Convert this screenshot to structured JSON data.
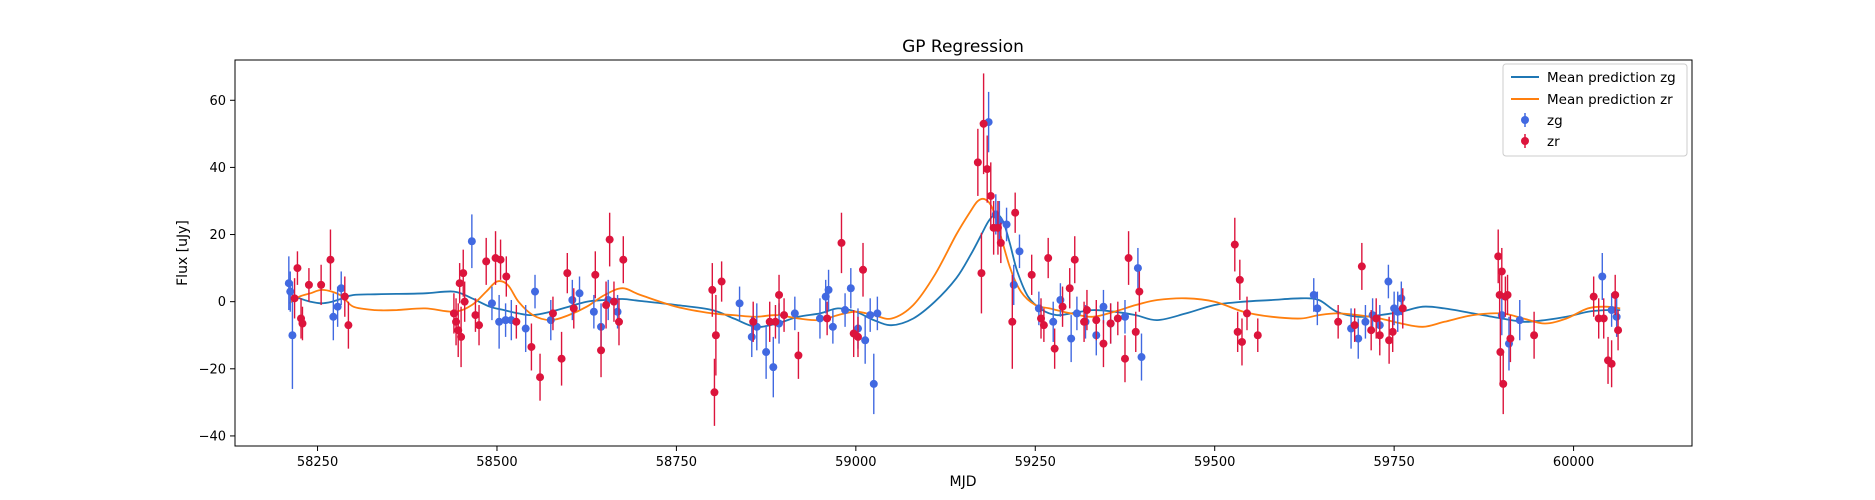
{
  "chart_data": {
    "type": "scatter",
    "title": "GP Regression",
    "xlabel": "MJD",
    "ylabel": "Flux [uJy]",
    "xlim": [
      58135,
      60165
    ],
    "ylim": [
      -43,
      72
    ],
    "xticks": [
      58250,
      58500,
      58750,
      59000,
      59250,
      59500,
      59750,
      60000
    ],
    "yticks": [
      -40,
      -20,
      0,
      20,
      40,
      60
    ],
    "legend_position": "top-right",
    "grid": false,
    "legend": [
      {
        "label": "Mean prediction zg",
        "kind": "line",
        "color": "#1f77b4"
      },
      {
        "label": "Mean prediction zr",
        "kind": "line",
        "color": "#ff7f0e"
      },
      {
        "label": "zg",
        "kind": "errorbar",
        "color": "#4169e1"
      },
      {
        "label": "zr",
        "kind": "errorbar",
        "color": "#dc143c"
      }
    ],
    "lines": [
      {
        "name": "Mean prediction zg",
        "color": "#1f77b4",
        "x": [
          58210,
          58225,
          58240,
          58255,
          58270,
          58285,
          58300,
          58330,
          58360,
          58400,
          58440,
          58465,
          58490,
          58510,
          58530,
          58550,
          58575,
          58600,
          58625,
          58650,
          58675,
          58700,
          58750,
          58800,
          58830,
          58860,
          58890,
          58920,
          58950,
          58975,
          59000,
          59025,
          59050,
          59080,
          59110,
          59140,
          59160,
          59175,
          59185,
          59195,
          59205,
          59215,
          59225,
          59240,
          59260,
          59280,
          59300,
          59330,
          59360,
          59390,
          59420,
          59460,
          59500,
          59540,
          59580,
          59620,
          59645,
          59670,
          59700,
          59730,
          59760,
          59790,
          59820,
          59860,
          59900,
          59930,
          59960,
          59990,
          60020,
          60045,
          60065
        ],
        "y": [
          2.5,
          1.0,
          0.0,
          -0.5,
          0.0,
          1.0,
          2.0,
          2.2,
          2.3,
          2.5,
          3.0,
          1.0,
          -1.5,
          -2.5,
          -3.5,
          -4.0,
          -3.0,
          -1.5,
          0.0,
          0.5,
          0.8,
          0.2,
          -1.0,
          -2.5,
          -5.0,
          -7.5,
          -6.5,
          -4.5,
          -3.5,
          -2.0,
          -3.0,
          -5.5,
          -7.0,
          -5.0,
          0.0,
          7.0,
          14.0,
          20.0,
          24.0,
          26.0,
          24.0,
          17.0,
          9.0,
          1.5,
          -2.5,
          -4.0,
          -3.5,
          -2.5,
          -3.0,
          -4.0,
          -5.5,
          -3.5,
          -1.0,
          0.0,
          0.5,
          1.0,
          0.5,
          -3.0,
          -4.5,
          -4.0,
          -3.0,
          -1.5,
          -2.0,
          -3.5,
          -5.0,
          -6.0,
          -5.5,
          -4.5,
          -3.0,
          -2.5,
          -2.5
        ]
      },
      {
        "name": "Mean prediction zr",
        "color": "#ff7f0e",
        "x": [
          58210,
          58225,
          58240,
          58255,
          58270,
          58285,
          58300,
          58330,
          58360,
          58400,
          58440,
          58465,
          58485,
          58500,
          58515,
          58530,
          58550,
          58575,
          58600,
          58625,
          58650,
          58675,
          58700,
          58750,
          58800,
          58830,
          58860,
          58890,
          58920,
          58950,
          58975,
          59000,
          59025,
          59050,
          59080,
          59110,
          59140,
          59160,
          59170,
          59180,
          59190,
          59200,
          59215,
          59230,
          59250,
          59270,
          59300,
          59330,
          59360,
          59390,
          59420,
          59460,
          59500,
          59540,
          59580,
          59620,
          59645,
          59670,
          59700,
          59730,
          59760,
          59790,
          59820,
          59860,
          59900,
          59930,
          59960,
          59990,
          60020,
          60045,
          60065
        ],
        "y": [
          -0.5,
          1.5,
          2.5,
          3.5,
          3.0,
          1.5,
          -1.5,
          -2.5,
          -2.5,
          -2.0,
          -3.0,
          -1.0,
          3.0,
          6.0,
          5.0,
          0.0,
          -4.0,
          -5.5,
          -4.0,
          -1.5,
          2.0,
          4.0,
          2.0,
          -1.5,
          -3.5,
          -4.0,
          -4.5,
          -4.0,
          -5.0,
          -5.5,
          -4.0,
          -3.0,
          -4.0,
          -5.0,
          -1.0,
          8.0,
          20.0,
          27.0,
          30.0,
          30.5,
          28.0,
          21.0,
          10.0,
          3.0,
          -1.0,
          -2.0,
          -3.5,
          -4.5,
          -3.0,
          -1.0,
          0.5,
          1.0,
          0.0,
          -3.0,
          -4.5,
          -5.0,
          -4.0,
          -3.5,
          -4.0,
          -5.0,
          -6.5,
          -7.5,
          -6.0,
          -4.0,
          -3.5,
          -5.0,
          -6.5,
          -5.0,
          -2.0,
          -1.5,
          -2.0
        ]
      }
    ],
    "series": [
      {
        "name": "zg",
        "color": "#4169e1",
        "points": [
          [
            58210,
            5.5,
            8
          ],
          [
            58212,
            3.0,
            6
          ],
          [
            58215,
            -10.0,
            16
          ],
          [
            58272,
            -4.5,
            7
          ],
          [
            58278,
            -1.5,
            6
          ],
          [
            58283,
            4.0,
            5
          ],
          [
            58465,
            18.0,
            8
          ],
          [
            58493,
            -0.5,
            5
          ],
          [
            58503,
            -6.0,
            8
          ],
          [
            58512,
            -5.5,
            5
          ],
          [
            58520,
            -5.5,
            6
          ],
          [
            58540,
            -8.0,
            7
          ],
          [
            58553,
            3.0,
            5
          ],
          [
            58575,
            -5.5,
            6
          ],
          [
            58605,
            0.5,
            6
          ],
          [
            58615,
            2.5,
            5
          ],
          [
            58635,
            -3.0,
            5
          ],
          [
            58645,
            -7.5,
            7
          ],
          [
            58655,
            0.5,
            6
          ],
          [
            58668,
            -3.0,
            5
          ],
          [
            58838,
            -0.5,
            5
          ],
          [
            58855,
            -10.5,
            6
          ],
          [
            58862,
            -7.5,
            7
          ],
          [
            58875,
            -15.0,
            8
          ],
          [
            58885,
            -19.5,
            9
          ],
          [
            58893,
            -6.5,
            6
          ],
          [
            58915,
            -3.5,
            5
          ],
          [
            58950,
            -5.0,
            6
          ],
          [
            58958,
            1.5,
            5
          ],
          [
            58962,
            3.5,
            6
          ],
          [
            58968,
            -7.5,
            5
          ],
          [
            58985,
            -2.5,
            5
          ],
          [
            58993,
            4.0,
            6
          ],
          [
            59003,
            -8.0,
            6
          ],
          [
            59013,
            -11.5,
            7
          ],
          [
            59020,
            -4.0,
            5
          ],
          [
            59025,
            -24.5,
            9
          ],
          [
            59030,
            -3.5,
            5
          ],
          [
            59185,
            53.5,
            9
          ],
          [
            59195,
            26.0,
            6
          ],
          [
            59200,
            24.0,
            6
          ],
          [
            59210,
            23.0,
            5
          ],
          [
            59220,
            5.0,
            6
          ],
          [
            59228,
            15.0,
            5
          ],
          [
            59255,
            -2.0,
            5
          ],
          [
            59275,
            -6.0,
            6
          ],
          [
            59285,
            0.5,
            5
          ],
          [
            59300,
            -11.0,
            7
          ],
          [
            59308,
            -3.5,
            5
          ],
          [
            59320,
            -6.0,
            5
          ],
          [
            59335,
            -10.0,
            6
          ],
          [
            59345,
            -1.5,
            5
          ],
          [
            59355,
            -6.5,
            6
          ],
          [
            59375,
            -4.5,
            5
          ],
          [
            59393,
            10.0,
            6
          ],
          [
            59398,
            -16.5,
            7
          ],
          [
            59638,
            2.0,
            5
          ],
          [
            59643,
            -2.0,
            5
          ],
          [
            59690,
            -8.0,
            6
          ],
          [
            59700,
            -11.0,
            6
          ],
          [
            59710,
            -6.0,
            5
          ],
          [
            59720,
            -4.0,
            5
          ],
          [
            59730,
            -7.0,
            6
          ],
          [
            59742,
            6.0,
            5
          ],
          [
            59750,
            -2.0,
            5
          ],
          [
            59755,
            -3.0,
            6
          ],
          [
            59760,
            1.0,
            5
          ],
          [
            59900,
            -4.0,
            6
          ],
          [
            59910,
            -12.5,
            8
          ],
          [
            59925,
            -5.5,
            6
          ],
          [
            60040,
            7.5,
            7
          ],
          [
            60053,
            -2.5,
            5
          ],
          [
            60060,
            -4.5,
            6
          ]
        ]
      },
      {
        "name": "zr",
        "color": "#dc143c",
        "points": [
          [
            58218,
            1.0,
            6
          ],
          [
            58222,
            10.0,
            5
          ],
          [
            58227,
            -5.0,
            6
          ],
          [
            58229,
            -6.5,
            5
          ],
          [
            58238,
            5.0,
            5
          ],
          [
            58255,
            5.0,
            6
          ],
          [
            58268,
            12.5,
            9
          ],
          [
            58288,
            1.5,
            6
          ],
          [
            58293,
            -7.0,
            7
          ],
          [
            58440,
            -3.5,
            6
          ],
          [
            58443,
            -6.0,
            7
          ],
          [
            58446,
            -8.5,
            8
          ],
          [
            58448,
            5.5,
            6
          ],
          [
            58450,
            -10.5,
            9
          ],
          [
            58453,
            8.5,
            7
          ],
          [
            58455,
            0.0,
            6
          ],
          [
            58470,
            -4.0,
            5
          ],
          [
            58475,
            -7.0,
            6
          ],
          [
            58485,
            12.0,
            7
          ],
          [
            58498,
            13.0,
            8
          ],
          [
            58505,
            12.5,
            6
          ],
          [
            58513,
            7.5,
            6
          ],
          [
            58527,
            -6.0,
            5
          ],
          [
            58548,
            -13.5,
            7
          ],
          [
            58560,
            -22.5,
            7
          ],
          [
            58578,
            -3.5,
            5
          ],
          [
            58590,
            -17.0,
            8
          ],
          [
            58598,
            8.5,
            6
          ],
          [
            58607,
            -2.0,
            6
          ],
          [
            58637,
            8.0,
            7
          ],
          [
            58645,
            -14.5,
            8
          ],
          [
            58652,
            -1.0,
            7
          ],
          [
            58657,
            18.5,
            8
          ],
          [
            58663,
            0.0,
            6
          ],
          [
            58676,
            12.5,
            7
          ],
          [
            58670,
            -6.0,
            7
          ],
          [
            58800,
            3.5,
            8
          ],
          [
            58803,
            -27.0,
            10
          ],
          [
            58805,
            -10.0,
            12
          ],
          [
            58813,
            6.0,
            6
          ],
          [
            58857,
            -6.0,
            6
          ],
          [
            58880,
            -6.0,
            6
          ],
          [
            58888,
            -6.0,
            5
          ],
          [
            58893,
            2.0,
            6
          ],
          [
            58900,
            -4.0,
            5
          ],
          [
            58920,
            -16.0,
            7
          ],
          [
            58960,
            -5.0,
            5
          ],
          [
            58980,
            17.5,
            9
          ],
          [
            58997,
            -9.5,
            7
          ],
          [
            59003,
            -10.5,
            6
          ],
          [
            59010,
            9.5,
            8
          ],
          [
            59170,
            41.5,
            10
          ],
          [
            59175,
            8.5,
            12
          ],
          [
            59178,
            53.0,
            15
          ],
          [
            59183,
            39.5,
            10
          ],
          [
            59188,
            31.5,
            10
          ],
          [
            59192,
            22.0,
            8
          ],
          [
            59198,
            22.0,
            8
          ],
          [
            59202,
            17.5,
            6
          ],
          [
            59218,
            -6.0,
            14
          ],
          [
            59222,
            26.5,
            6
          ],
          [
            59245,
            8.0,
            6
          ],
          [
            59258,
            -5.0,
            6
          ],
          [
            59262,
            -7.0,
            5
          ],
          [
            59268,
            13.0,
            6
          ],
          [
            59277,
            -14.0,
            6
          ],
          [
            59288,
            -1.5,
            6
          ],
          [
            59298,
            4.0,
            6
          ],
          [
            59305,
            12.5,
            7
          ],
          [
            59318,
            -6.0,
            6
          ],
          [
            59322,
            -2.5,
            6
          ],
          [
            59335,
            -5.5,
            6
          ],
          [
            59345,
            -12.5,
            7
          ],
          [
            59355,
            -6.5,
            6
          ],
          [
            59365,
            -5.0,
            5
          ],
          [
            59375,
            -17.0,
            7
          ],
          [
            59380,
            13.0,
            8
          ],
          [
            59390,
            -9.0,
            6
          ],
          [
            59395,
            3.0,
            6
          ],
          [
            59528,
            17.0,
            8
          ],
          [
            59532,
            -9.0,
            6
          ],
          [
            59535,
            6.5,
            6
          ],
          [
            59538,
            -12.0,
            7
          ],
          [
            59545,
            -3.5,
            5
          ],
          [
            59560,
            -10.0,
            5
          ],
          [
            59672,
            -6.0,
            5
          ],
          [
            59695,
            -7.0,
            5
          ],
          [
            59705,
            10.5,
            7
          ],
          [
            59718,
            -8.5,
            6
          ],
          [
            59725,
            -5.0,
            6
          ],
          [
            59730,
            -10.0,
            6
          ],
          [
            59743,
            -11.5,
            7
          ],
          [
            59748,
            -9.0,
            6
          ],
          [
            59762,
            -2.0,
            6
          ],
          [
            59895,
            13.5,
            8
          ],
          [
            59897,
            2.0,
            7
          ],
          [
            59898,
            -15.0,
            10
          ],
          [
            59900,
            9.0,
            7
          ],
          [
            59902,
            -24.5,
            9
          ],
          [
            59905,
            1.5,
            6
          ],
          [
            59908,
            2.0,
            6
          ],
          [
            59912,
            -11.0,
            7
          ],
          [
            59945,
            -10.0,
            7
          ],
          [
            60028,
            1.5,
            6
          ],
          [
            60035,
            -5.0,
            6
          ],
          [
            60042,
            -5.0,
            6
          ],
          [
            60048,
            -17.5,
            7
          ],
          [
            60053,
            -18.5,
            7
          ],
          [
            60058,
            2.0,
            6
          ],
          [
            60062,
            -8.5,
            6
          ]
        ]
      }
    ]
  }
}
